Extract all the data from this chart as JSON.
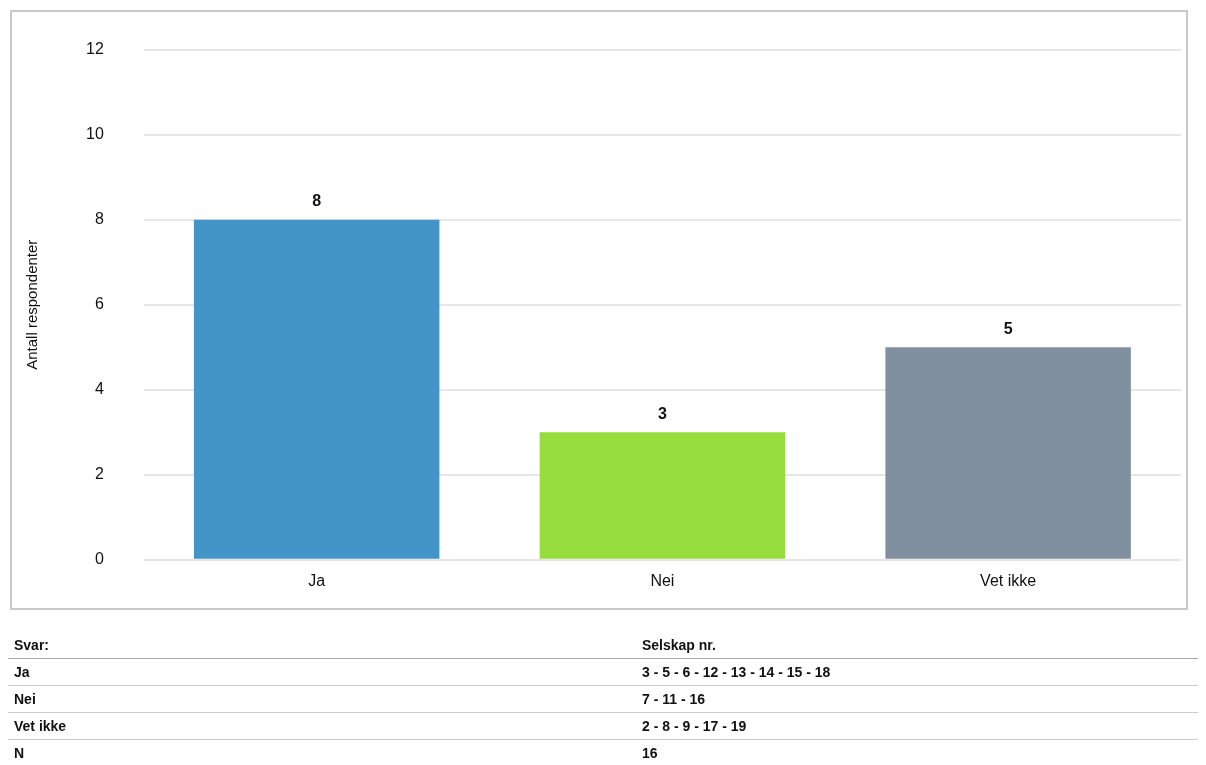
{
  "chart_data": {
    "type": "bar",
    "ylabel": "Antall respondenter",
    "categories": [
      "Ja",
      "Nei",
      "Vet ikke"
    ],
    "values": [
      8,
      3,
      5
    ],
    "colors": [
      "#4495c7",
      "#96dc3c",
      "#8090a0"
    ],
    "ylim": [
      0,
      12
    ],
    "yticks": [
      0,
      2,
      4,
      6,
      8,
      10,
      12
    ],
    "grid": "y",
    "data_labels": true,
    "legend": false,
    "annotations": [
      "Svar:",
      "Selskap nr.",
      "Ja",
      "3 - 5 - 6 - 12 - 13 - 14 - 15 - 18",
      "Nei",
      "7 - 11 - 16",
      "Vet ikke",
      "2 - 8 - 9 - 17 - 19",
      "N",
      "16"
    ]
  }
}
